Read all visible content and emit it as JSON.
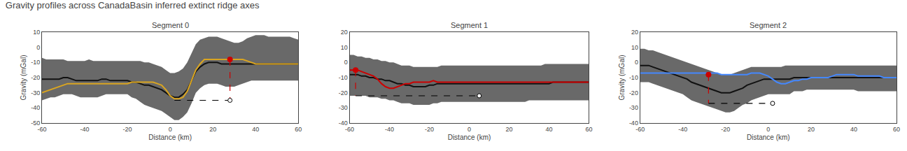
{
  "title": "Gravity profiles across CanadaBasin inferred extinct ridge axes",
  "chart_data": [
    {
      "type": "line",
      "title": "Segment 0",
      "xlabel": "Distance (km)",
      "ylabel": "Gravity (mGal)",
      "grid": false,
      "xlim": [
        -60,
        60
      ],
      "xticks": [
        -60,
        -40,
        -20,
        0,
        20,
        40,
        60
      ],
      "ylim": [
        -50,
        10
      ],
      "yticks": [
        -50,
        -40,
        -30,
        -20,
        -10,
        0,
        10
      ],
      "x": [
        -60,
        -58,
        -56,
        -54,
        -52,
        -50,
        -48,
        -46,
        -44,
        -42,
        -40,
        -38,
        -36,
        -34,
        -32,
        -30,
        -28,
        -26,
        -24,
        -22,
        -20,
        -18,
        -16,
        -14,
        -12,
        -10,
        -8,
        -6,
        -4,
        -2,
        0,
        2,
        4,
        6,
        8,
        10,
        12,
        14,
        16,
        18,
        20,
        22,
        24,
        26,
        28,
        30,
        32,
        34,
        36,
        38,
        40,
        42,
        44,
        46,
        48,
        50,
        52,
        54,
        56,
        58,
        60
      ],
      "series": [
        {
          "type": "band",
          "color": "#696969",
          "upper": [
            -7,
            -8,
            -8,
            -8,
            -8,
            -8,
            -9,
            -9,
            -9,
            -9,
            -9,
            -8,
            -9,
            -9,
            -9,
            -9,
            -9,
            -9,
            -9,
            -9,
            -9,
            -9,
            -9,
            -9,
            -10,
            -10,
            -11,
            -12,
            -13,
            -15,
            -17,
            -17,
            -16,
            -14,
            -10,
            -4,
            2,
            5,
            6,
            7,
            7,
            7,
            6,
            5,
            4,
            3,
            3,
            4,
            6,
            7,
            8,
            8,
            8,
            7,
            7,
            7,
            7,
            7,
            7,
            6,
            5
          ],
          "lower": [
            -35,
            -34,
            -33,
            -33,
            -32,
            -31,
            -31,
            -31,
            -32,
            -33,
            -33,
            -33,
            -33,
            -33,
            -32,
            -31,
            -31,
            -31,
            -31,
            -31,
            -31,
            -33,
            -34,
            -36,
            -38,
            -39,
            -40,
            -41,
            -42,
            -44,
            -46,
            -48,
            -48,
            -46,
            -43,
            -37,
            -30,
            -27,
            -25,
            -24,
            -24,
            -24,
            -25,
            -26,
            -26,
            -26,
            -25,
            -24,
            -23,
            -22,
            -22,
            -22,
            -22,
            -22,
            -22,
            -22,
            -22,
            -22,
            -22,
            -22,
            -22
          ]
        },
        {
          "type": "line",
          "color": "#111111",
          "values": [
            -21,
            -21,
            -21,
            -21,
            -21,
            -20,
            -20,
            -21,
            -22,
            -22,
            -22,
            -22,
            -22,
            -22,
            -21,
            -21,
            -22,
            -22,
            -22,
            -22,
            -22,
            -23,
            -23,
            -24,
            -25,
            -25,
            -26,
            -27,
            -28,
            -30,
            -32,
            -33,
            -33,
            -31,
            -28,
            -22,
            -16,
            -13,
            -11,
            -10,
            -10,
            -10,
            -11,
            -11,
            -11,
            -11,
            -11,
            -11,
            -11,
            -11,
            -11,
            -11,
            -11,
            -11,
            -11,
            -11,
            -11,
            -11,
            -11,
            -11,
            -11
          ]
        },
        {
          "type": "line",
          "color": "#DAA520",
          "values": [
            -30,
            -29,
            -28,
            -27,
            -26,
            -25,
            -24,
            -24,
            -24,
            -24,
            -24,
            -24,
            -24,
            -24,
            -24,
            -24,
            -24,
            -24,
            -24,
            -24,
            -24,
            -23,
            -23,
            -23,
            -23,
            -23,
            -23,
            -24,
            -25,
            -28,
            -32,
            -34,
            -34,
            -33,
            -29,
            -22,
            -15,
            -11,
            -8,
            -8,
            -8,
            -8,
            -8,
            -8,
            -8,
            -8,
            -8,
            -8,
            -9,
            -10,
            -11,
            -11,
            -11,
            -11,
            -11,
            -11,
            -11,
            -11,
            -11,
            -11,
            -11
          ]
        },
        {
          "type": "line",
          "line_style": "dashed",
          "color": "#cc0000",
          "x": [
            28,
            28
          ],
          "values": [
            -8,
            -35
          ]
        },
        {
          "type": "line",
          "line_style": "dashed",
          "color": "black",
          "x": [
            2,
            28
          ],
          "values": [
            -35,
            -35
          ]
        },
        {
          "type": "scatter",
          "marker": "circle",
          "color": "#cc0000",
          "x": [
            28
          ],
          "values": [
            -8
          ]
        },
        {
          "type": "scatter",
          "marker": "circle",
          "color": "white",
          "x": [
            28
          ],
          "values": [
            -35
          ]
        }
      ]
    },
    {
      "type": "line",
      "title": "Segment 1",
      "xlabel": "Distance (km)",
      "grid": false,
      "xlim": [
        -60,
        60
      ],
      "xticks": [
        -60,
        -40,
        -20,
        0,
        20,
        40,
        60
      ],
      "ylim": [
        -40,
        20
      ],
      "yticks": [
        -40,
        -30,
        -20,
        -10,
        0,
        10,
        20
      ],
      "x": [
        -60,
        -58,
        -56,
        -54,
        -52,
        -50,
        -48,
        -46,
        -44,
        -42,
        -40,
        -38,
        -36,
        -34,
        -32,
        -30,
        -28,
        -26,
        -24,
        -22,
        -20,
        -18,
        -16,
        -14,
        -12,
        -10,
        -8,
        -6,
        -4,
        -2,
        0,
        2,
        4,
        6,
        8,
        10,
        12,
        14,
        16,
        18,
        20,
        22,
        24,
        26,
        28,
        30,
        32,
        34,
        36,
        38,
        40,
        42,
        44,
        46,
        48,
        50,
        52,
        54,
        56,
        58,
        60
      ],
      "series": [
        {
          "type": "band",
          "color": "#696969",
          "upper": [
            5,
            5,
            4,
            4,
            3,
            3,
            2,
            2,
            1,
            1,
            0,
            0,
            -1,
            -2,
            -2,
            -2,
            -3,
            -3,
            -3,
            -3,
            -3,
            -3,
            -3,
            -2,
            -2,
            -2,
            -2,
            -2,
            -2,
            -2,
            -2,
            -2,
            -2,
            -2,
            -2,
            -2,
            -2,
            -2,
            -2,
            -2,
            -2,
            -2,
            -2,
            -2,
            -2,
            -2,
            -2,
            -2,
            -2,
            -1,
            -1,
            -1,
            -1,
            -1,
            -1,
            -1,
            -1,
            -1,
            -1,
            -1,
            -1
          ],
          "lower": [
            -22,
            -22,
            -22,
            -22,
            -22,
            -23,
            -23,
            -23,
            -24,
            -24,
            -25,
            -25,
            -26,
            -27,
            -27,
            -27,
            -28,
            -28,
            -28,
            -28,
            -28,
            -27,
            -27,
            -26,
            -26,
            -26,
            -26,
            -26,
            -26,
            -26,
            -26,
            -26,
            -26,
            -26,
            -26,
            -26,
            -26,
            -26,
            -26,
            -26,
            -26,
            -26,
            -26,
            -26,
            -26,
            -25,
            -25,
            -25,
            -25,
            -25,
            -25,
            -25,
            -25,
            -25,
            -25,
            -25,
            -25,
            -25,
            -25,
            -25,
            -25
          ]
        },
        {
          "type": "line",
          "color": "#111111",
          "values": [
            -8,
            -8,
            -8,
            -9,
            -9,
            -10,
            -10,
            -11,
            -11,
            -12,
            -12,
            -13,
            -14,
            -14,
            -15,
            -15,
            -16,
            -16,
            -16,
            -16,
            -15,
            -15,
            -14,
            -14,
            -14,
            -14,
            -14,
            -14,
            -14,
            -14,
            -14,
            -14,
            -14,
            -14,
            -14,
            -14,
            -14,
            -14,
            -14,
            -14,
            -14,
            -14,
            -14,
            -14,
            -14,
            -14,
            -14,
            -14,
            -14,
            -14,
            -14,
            -13,
            -13,
            -13,
            -13,
            -13,
            -13,
            -13,
            -13,
            -13,
            -13
          ]
        },
        {
          "type": "line",
          "color": "#cc0000",
          "values": [
            -5,
            -5,
            -5,
            -6,
            -7,
            -8,
            -9,
            -11,
            -14,
            -16,
            -17,
            -17,
            -16,
            -15,
            -14,
            -14,
            -13,
            -13,
            -13,
            -13,
            -13,
            -12,
            -13,
            -13,
            -13,
            -13,
            -13,
            -13,
            -13,
            -13,
            -13,
            -13,
            -13,
            -13,
            -13,
            -13,
            -13,
            -13,
            -13,
            -13,
            -13,
            -13,
            -13,
            -13,
            -13,
            -13,
            -13,
            -13,
            -13,
            -13,
            -13,
            -13,
            -13,
            -13,
            -13,
            -13,
            -13,
            -13,
            -13,
            -13,
            -13
          ]
        },
        {
          "type": "line",
          "line_style": "dashed",
          "color": "#cc0000",
          "x": [
            -57,
            -57
          ],
          "values": [
            -5,
            -22
          ]
        },
        {
          "type": "line",
          "line_style": "dashed",
          "color": "black",
          "x": [
            -57,
            5
          ],
          "values": [
            -22,
            -22
          ]
        },
        {
          "type": "scatter",
          "marker": "circle",
          "color": "#cc0000",
          "x": [
            -57
          ],
          "values": [
            -5
          ]
        },
        {
          "type": "scatter",
          "marker": "circle",
          "color": "white",
          "x": [
            5
          ],
          "values": [
            -22
          ]
        }
      ]
    },
    {
      "type": "line",
      "title": "Segment 2",
      "xlabel": "Distance (km)",
      "ylabel": "Gravity (mGal)",
      "grid": false,
      "xlim": [
        -60,
        60
      ],
      "xticks": [
        -60,
        -40,
        -20,
        0,
        20,
        40,
        60
      ],
      "ylim": [
        -40,
        20
      ],
      "yticks": [
        -40,
        -30,
        -20,
        -10,
        0,
        10,
        20
      ],
      "x": [
        -60,
        -58,
        -56,
        -54,
        -52,
        -50,
        -48,
        -46,
        -44,
        -42,
        -40,
        -38,
        -36,
        -34,
        -32,
        -30,
        -28,
        -26,
        -24,
        -22,
        -20,
        -18,
        -16,
        -14,
        -12,
        -10,
        -8,
        -6,
        -4,
        -2,
        0,
        2,
        4,
        6,
        8,
        10,
        12,
        14,
        16,
        18,
        20,
        22,
        24,
        26,
        28,
        30,
        32,
        34,
        36,
        38,
        40,
        42,
        44,
        46,
        48,
        50,
        52,
        54,
        56,
        58,
        60
      ],
      "series": [
        {
          "type": "band",
          "color": "#696969",
          "upper": [
            9,
            9,
            8,
            8,
            7,
            6,
            5,
            4,
            3,
            2,
            1,
            0,
            -1,
            -2,
            -3,
            -4,
            -5,
            -6,
            -7,
            -8,
            -8,
            -8,
            -7,
            -6,
            -5,
            -4,
            -3,
            -3,
            -3,
            -3,
            -3,
            -3,
            -3,
            -3,
            -2,
            -2,
            -2,
            -2,
            -2,
            -2,
            -2,
            -2,
            -2,
            -2,
            -2,
            -2,
            -2,
            -2,
            -2,
            -2,
            -2,
            -2,
            -2,
            -2,
            -2,
            -2,
            -2,
            -2,
            -2,
            -2,
            -2
          ],
          "lower": [
            -13,
            -13,
            -13,
            -14,
            -15,
            -16,
            -17,
            -18,
            -19,
            -20,
            -21,
            -23,
            -25,
            -26,
            -27,
            -28,
            -29,
            -30,
            -31,
            -32,
            -33,
            -33,
            -32,
            -30,
            -28,
            -27,
            -25,
            -24,
            -23,
            -22,
            -21,
            -21,
            -21,
            -21,
            -21,
            -21,
            -19,
            -19,
            -19,
            -18,
            -18,
            -18,
            -18,
            -18,
            -18,
            -18,
            -18,
            -18,
            -18,
            -18,
            -18,
            -19,
            -19,
            -19,
            -19,
            -19,
            -19,
            -19,
            -19,
            -19,
            -19
          ]
        },
        {
          "type": "line",
          "color": "#111111",
          "values": [
            -2,
            -2,
            -2,
            -3,
            -4,
            -5,
            -6,
            -7,
            -8,
            -9,
            -10,
            -11,
            -13,
            -14,
            -15,
            -16,
            -17,
            -18,
            -19,
            -20,
            -20,
            -20,
            -19,
            -18,
            -17,
            -15,
            -14,
            -13,
            -12,
            -11,
            -11,
            -11,
            -11,
            -11,
            -11,
            -11,
            -10,
            -10,
            -10,
            -10,
            -10,
            -10,
            -10,
            -10,
            -10,
            -10,
            -10,
            -10,
            -10,
            -10,
            -10,
            -10,
            -10,
            -10,
            -10,
            -10,
            -10,
            -10,
            -10,
            -10,
            -10
          ]
        },
        {
          "type": "line",
          "color": "#4488ff",
          "values": [
            -7,
            -7,
            -7,
            -7,
            -7,
            -7,
            -7,
            -7,
            -7,
            -7,
            -7,
            -7,
            -7,
            -7,
            -7,
            -7,
            -7,
            -7,
            -7,
            -8,
            -8,
            -8,
            -8,
            -8,
            -8,
            -8,
            -7,
            -7,
            -7,
            -8,
            -9,
            -11,
            -13,
            -14,
            -14,
            -13,
            -12,
            -12,
            -11,
            -11,
            -10,
            -10,
            -10,
            -10,
            -10,
            -9,
            -8,
            -8,
            -8,
            -8,
            -8,
            -9,
            -9,
            -9,
            -9,
            -9,
            -9,
            -10,
            -10,
            -10,
            -10
          ]
        },
        {
          "type": "line",
          "line_style": "dashed",
          "color": "#cc0000",
          "x": [
            -28,
            -28
          ],
          "values": [
            -8,
            -27
          ]
        },
        {
          "type": "line",
          "line_style": "dashed",
          "color": "black",
          "x": [
            -28,
            2
          ],
          "values": [
            -27,
            -27
          ]
        },
        {
          "type": "scatter",
          "marker": "circle",
          "color": "#cc0000",
          "x": [
            -28
          ],
          "values": [
            -8
          ]
        },
        {
          "type": "scatter",
          "marker": "circle",
          "color": "white",
          "x": [
            2
          ],
          "values": [
            -27
          ]
        }
      ]
    }
  ]
}
